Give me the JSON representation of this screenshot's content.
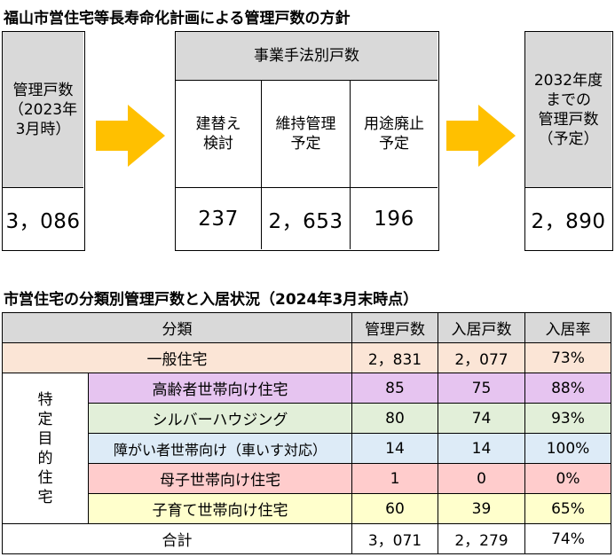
{
  "top": {
    "title": "福山市営住宅等長寿命化計画による管理戸数の方針",
    "current": {
      "label": "管理戸数\n（2023年\n3月時）",
      "value": "3，086"
    },
    "methods": {
      "header": "事業手法別戸数",
      "columns": [
        {
          "label": "建替え\n検討",
          "value": "237"
        },
        {
          "label": "維持管理\n予定",
          "value": "2，653"
        },
        {
          "label": "用途廃止\n予定",
          "value": "196"
        }
      ]
    },
    "future": {
      "label": "2032年度\nまでの\n管理戸数\n（予定）",
      "value": "2，890"
    }
  },
  "bottom": {
    "title": "市営住宅の分類別管理戸数と入居状況（2024年3月末時点）",
    "headers": [
      "分類",
      "管理戸数",
      "入居戸数",
      "入居率"
    ],
    "general": {
      "label": "一般住宅",
      "managed": "2，831",
      "occupied": "2，077",
      "rate": "73%"
    },
    "special_group_label": "特\n定\n目\n的\n住\n宅",
    "special": [
      {
        "label": "高齢者世帯向け住宅",
        "managed": "85",
        "occupied": "75",
        "rate": "88%"
      },
      {
        "label": "シルバーハウジング",
        "managed": "80",
        "occupied": "74",
        "rate": "93%"
      },
      {
        "label": "障がい者世帯向け（車いす対応）",
        "managed": "14",
        "occupied": "14",
        "rate": "100%"
      },
      {
        "label": "母子世帯向け住宅",
        "managed": "1",
        "occupied": "0",
        "rate": "0%"
      },
      {
        "label": "子育て世帯向け住宅",
        "managed": "60",
        "occupied": "39",
        "rate": "65%"
      }
    ],
    "total": {
      "label": "合計",
      "managed": "3，071",
      "occupied": "2，279",
      "rate": "74%"
    }
  },
  "colors": {
    "gray": "#d9d9d9",
    "arrow": "#ffc000",
    "general": "#fbe5d6",
    "elderly": "#e6c4f0",
    "silver": "#e2efd9",
    "disabled": "#ddebf7",
    "single_parent": "#ffcccc",
    "childcare": "#ffffcc"
  }
}
